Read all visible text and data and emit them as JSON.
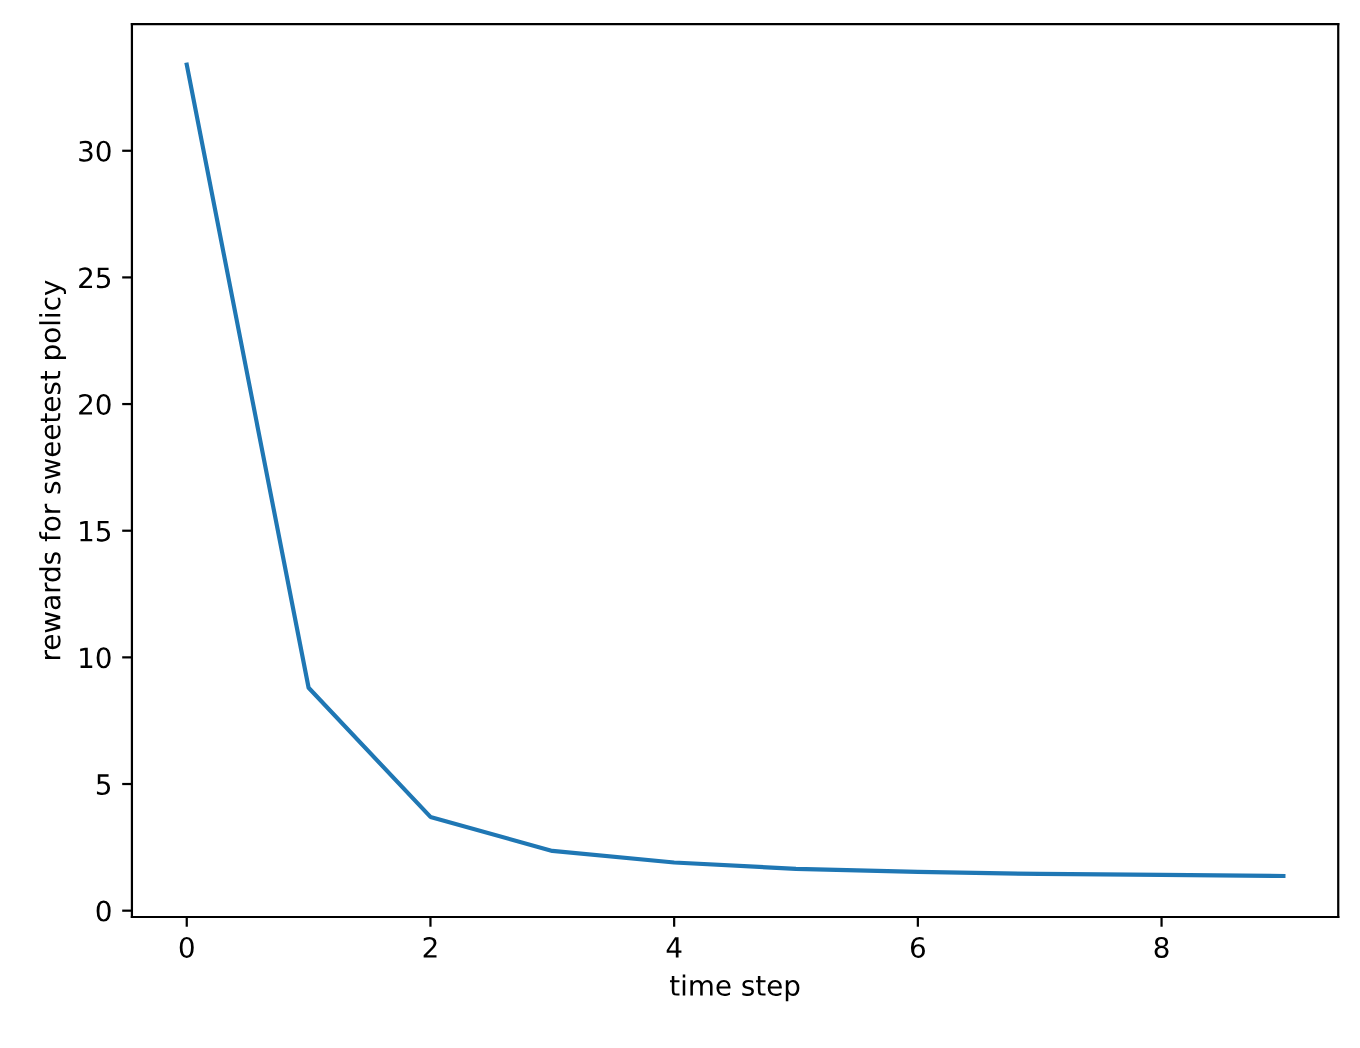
{
  "chart_data": {
    "type": "line",
    "xlabel": "time step",
    "ylabel": "rewards for sweetest policy",
    "x": [
      0,
      1,
      2,
      3,
      4,
      5,
      6,
      7,
      8,
      9
    ],
    "series": [
      {
        "color": "#1f77b4",
        "values": [
          33.4,
          8.8,
          3.7,
          2.36,
          1.9,
          1.65,
          1.53,
          1.45,
          1.41,
          1.37
        ]
      }
    ],
    "xlim": [
      -0.45,
      9.45
    ],
    "ylim": [
      -0.25,
      35.0
    ],
    "xticks": [
      0,
      2,
      4,
      6,
      8
    ],
    "yticks": [
      0,
      5,
      10,
      15,
      20,
      25,
      30
    ],
    "grid": false,
    "legend": false
  }
}
